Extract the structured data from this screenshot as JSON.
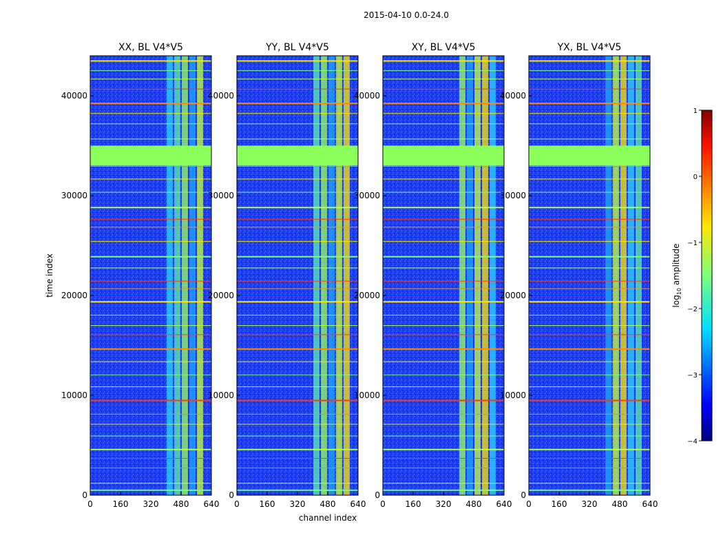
{
  "chart_data": {
    "type": "heatmap",
    "suptitle": "2015-04-10 0.0-24.0",
    "xlabel": "channel index",
    "ylabel": "time index",
    "xlim": [
      0,
      640
    ],
    "ylim": [
      0,
      44000
    ],
    "xticks": [
      0,
      160,
      320,
      480,
      640
    ],
    "yticks": [
      0,
      10000,
      20000,
      30000,
      40000
    ],
    "panels": [
      {
        "id": "xx",
        "title": "XX, BL V4*V5"
      },
      {
        "id": "yy",
        "title": "YY, BL V4*V5"
      },
      {
        "id": "xy",
        "title": "XY, BL V4*V5"
      },
      {
        "id": "yx",
        "title": "YX, BL V4*V5"
      }
    ],
    "active_channel_range": [
      400,
      600
    ],
    "flagged_time_range": [
      33000,
      35000
    ],
    "colorbar": {
      "label": "log10 amplitude",
      "label_base": "log",
      "label_sub": "10",
      "label_rest": " amplitude",
      "min": -4,
      "max": 1,
      "ticks": [
        1,
        0,
        -1,
        -2,
        -3,
        -4
      ],
      "tick_labels": [
        "1",
        "0",
        "−1",
        "−2",
        "−3",
        "−4"
      ]
    }
  }
}
